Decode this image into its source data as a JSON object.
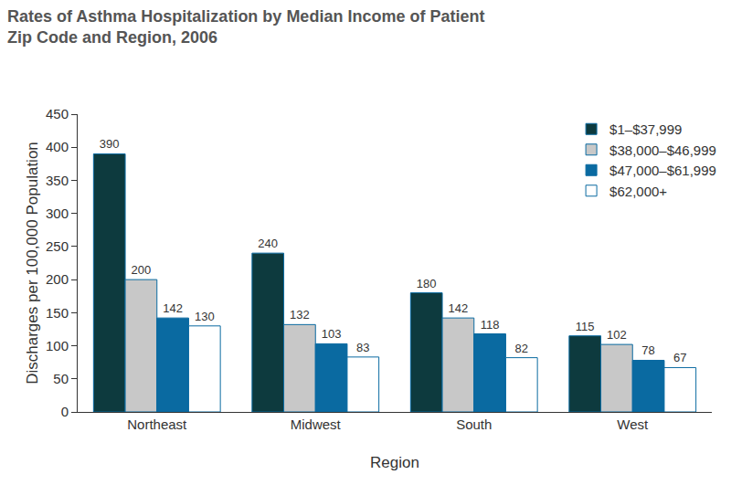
{
  "chart_data": {
    "type": "bar",
    "title": [
      "Rates of Asthma Hospitalization by Median Income of Patient",
      "Zip Code and Region, 2006"
    ],
    "x_label": "Region",
    "y_label": "Discharges per 100,000 Population",
    "categories": [
      "Northeast",
      "Midwest",
      "South",
      "West"
    ],
    "series": [
      {
        "name": "$1–$37,999",
        "color": "#0d3a3e",
        "values": [
          390,
          240,
          180,
          115
        ]
      },
      {
        "name": "$38,000–$46,999",
        "color": "#c8c8c8",
        "values": [
          200,
          132,
          142,
          102
        ]
      },
      {
        "name": "$47,000–$61,999",
        "color": "#0a6aa1",
        "values": [
          142,
          103,
          118,
          78
        ]
      },
      {
        "name": "$62,000+",
        "color": "#ffffff",
        "values": [
          130,
          83,
          82,
          67
        ]
      }
    ],
    "ylim": [
      0,
      450
    ],
    "yticks": [
      0,
      50,
      100,
      150,
      200,
      250,
      300,
      350,
      400,
      450
    ],
    "grid": false,
    "legend": "upper right",
    "data_labels": true
  }
}
